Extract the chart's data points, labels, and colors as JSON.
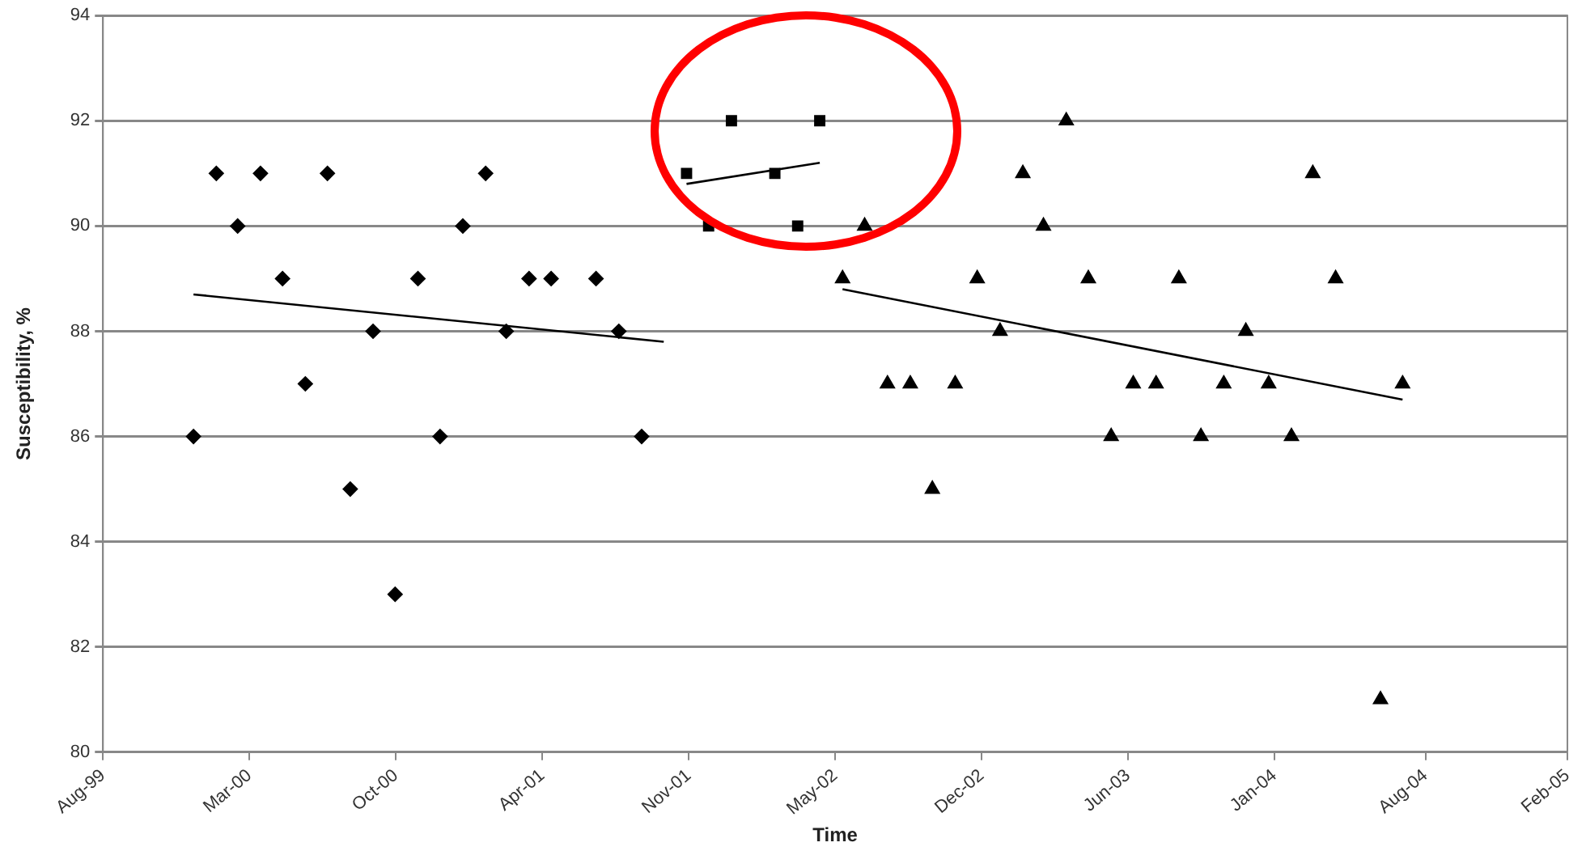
{
  "chart_data": {
    "type": "scatter",
    "xlabel": "Time",
    "ylabel": "Susceptibility, %",
    "xlim": [
      "1999-08-31",
      "2005-02-10"
    ],
    "xticks": [
      {
        "value": "1999-08-31",
        "label": "Aug-99"
      },
      {
        "value": "2000-03-17",
        "label": "Mar-00"
      },
      {
        "value": "2000-10-02",
        "label": "Oct-00"
      },
      {
        "value": "2001-04-19",
        "label": "Apr-01"
      },
      {
        "value": "2001-11-04",
        "label": "Nov-01"
      },
      {
        "value": "2002-05-22",
        "label": "May-02"
      },
      {
        "value": "2002-12-07",
        "label": "Dec-02"
      },
      {
        "value": "2003-06-24",
        "label": "Jun-03"
      },
      {
        "value": "2004-01-09",
        "label": "Jan-04"
      },
      {
        "value": "2004-08-01",
        "label": "Aug-04"
      },
      {
        "value": "2005-02-10",
        "label": "Feb-05"
      }
    ],
    "ylim": [
      80,
      94
    ],
    "yticks": [
      80,
      82,
      84,
      86,
      88,
      90,
      92,
      94
    ],
    "grid": "y",
    "legend": false,
    "series": [
      {
        "marker": "diamond",
        "color": "#000000",
        "x": [
          "2000-01",
          "2000-02",
          "2000-03",
          "2000-04",
          "2000-05",
          "2000-06",
          "2000-07",
          "2000-08",
          "2000-09",
          "2000-10",
          "2000-11",
          "2000-12",
          "2001-01",
          "2001-02",
          "2001-03",
          "2001-04",
          "2001-05",
          "2001-07",
          "2001-08",
          "2001-09"
        ],
        "values": [
          86,
          91,
          90,
          91,
          89,
          87,
          91,
          85,
          88,
          83,
          89,
          86,
          90,
          91,
          88,
          89,
          89,
          89,
          88,
          86
        ]
      },
      {
        "marker": "square",
        "color": "#000000",
        "x": [
          "2001-11",
          "2001-12",
          "2002-01",
          "2002-03",
          "2002-04",
          "2002-05"
        ],
        "values": [
          91,
          90,
          92,
          91,
          90,
          92
        ]
      },
      {
        "marker": "triangle",
        "color": "#000000",
        "x": [
          "2002-06",
          "2002-07",
          "2002-08",
          "2002-09",
          "2002-10",
          "2002-11",
          "2002-12",
          "2003-01",
          "2003-02",
          "2003-03",
          "2003-04",
          "2003-05",
          "2003-06",
          "2003-07",
          "2003-08",
          "2003-09",
          "2003-10",
          "2003-11",
          "2003-12",
          "2004-01",
          "2004-02",
          "2004-03",
          "2004-04",
          "2004-06",
          "2004-07"
        ],
        "values": [
          89,
          90,
          87,
          87,
          85,
          87,
          89,
          88,
          91,
          90,
          92,
          89,
          86,
          87,
          87,
          89,
          86,
          87,
          88,
          87,
          86,
          91,
          89,
          81,
          87
        ]
      },
      {
        "type": "line",
        "marker": "none",
        "color": "#000000",
        "x": [
          "2000-01",
          "2001-10"
        ],
        "values": [
          88.7,
          87.8
        ]
      },
      {
        "type": "line",
        "marker": "none",
        "color": "#000000",
        "x": [
          "2001-11",
          "2002-05"
        ],
        "values": [
          90.8,
          91.2
        ]
      },
      {
        "type": "line",
        "marker": "none",
        "color": "#000000",
        "x": [
          "2002-06",
          "2004-07"
        ],
        "values": [
          88.8,
          86.7
        ]
      }
    ]
  }
}
